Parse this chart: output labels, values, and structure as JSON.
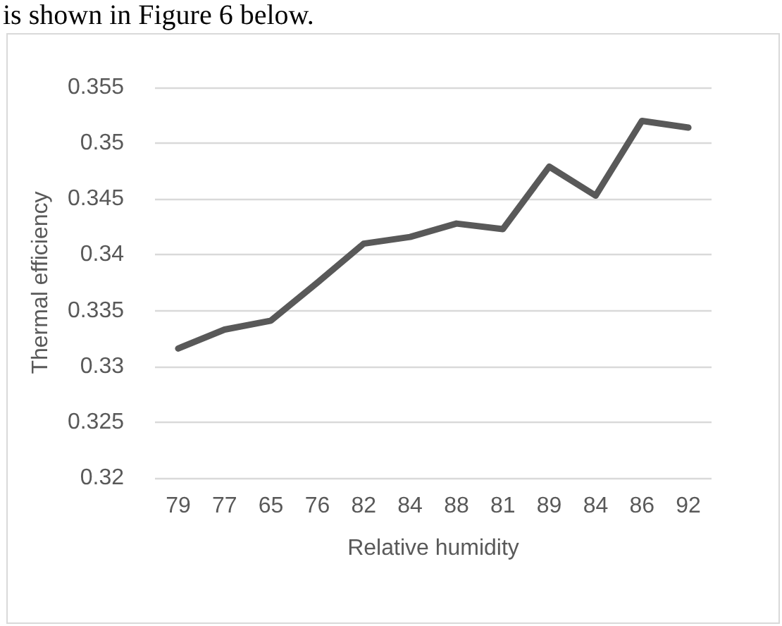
{
  "chart_data": {
    "type": "line",
    "xlabel": "Relative humidity",
    "ylabel": "Thermal efficiency",
    "annotations": [
      "is shown in Figure 6 below."
    ],
    "categories": [
      "79",
      "77",
      "65",
      "76",
      "82",
      "84",
      "88",
      "81",
      "89",
      "84",
      "86",
      "92"
    ],
    "series": [
      {
        "color": "#595959",
        "values": [
          0.3316,
          0.3333,
          0.3341,
          0.3375,
          0.341,
          0.3416,
          0.3428,
          0.3423,
          0.3479,
          0.3453,
          0.352,
          0.3514
        ]
      }
    ],
    "ylim": [
      0.32,
      0.355
    ],
    "yticks": [
      0.32,
      0.325,
      0.33,
      0.335,
      0.34,
      0.345,
      0.35,
      0.355
    ],
    "grid": "y",
    "marker": "none",
    "line_style": "solid"
  }
}
